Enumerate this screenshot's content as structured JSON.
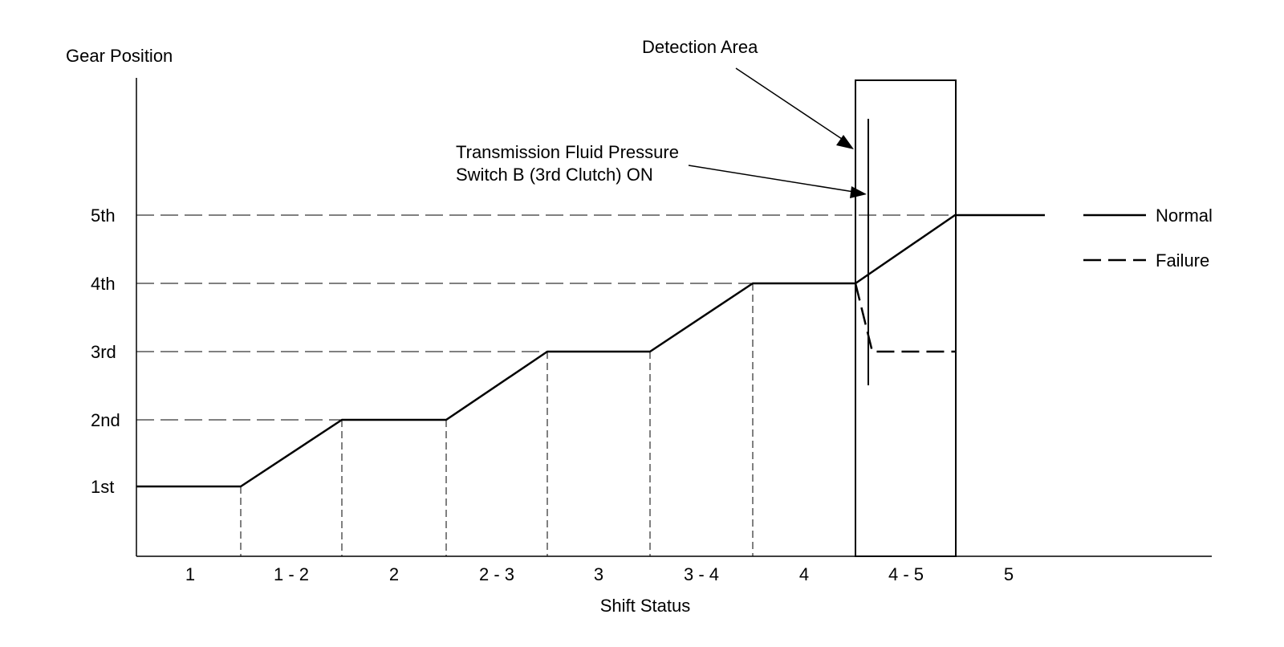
{
  "y_axis_title": "Gear Position",
  "x_axis_title": "Shift Status",
  "gears": [
    "1st",
    "2nd",
    "3rd",
    "4th",
    "5th"
  ],
  "shift_states": [
    "1",
    "1 - 2",
    "2",
    "2 - 3",
    "3",
    "3 - 4",
    "4",
    "4 - 5",
    "5"
  ],
  "annotations": {
    "detection_area": "Detection Area",
    "pressure_switch_line1": "Transmission Fluid Pressure",
    "pressure_switch_line2": "Switch B (3rd Clutch) ON"
  },
  "legend": {
    "normal": "Normal",
    "failure": "Failure"
  },
  "normal_curve": [
    [
      "1",
      "1st"
    ],
    [
      "1 - 2",
      "2nd"
    ],
    [
      "2",
      "2nd"
    ],
    [
      "2 - 3",
      "3rd"
    ],
    [
      "3",
      "3rd"
    ],
    [
      "3 - 4",
      "4th"
    ],
    [
      "4",
      "4th"
    ],
    [
      "4 - 5",
      "5th"
    ],
    [
      "5",
      "5th"
    ]
  ],
  "failure_curve": [
    [
      "4",
      "4th"
    ],
    [
      "4 - 5",
      "3rd"
    ]
  ],
  "colors": {
    "ink": "#000000",
    "background": "#ffffff"
  }
}
